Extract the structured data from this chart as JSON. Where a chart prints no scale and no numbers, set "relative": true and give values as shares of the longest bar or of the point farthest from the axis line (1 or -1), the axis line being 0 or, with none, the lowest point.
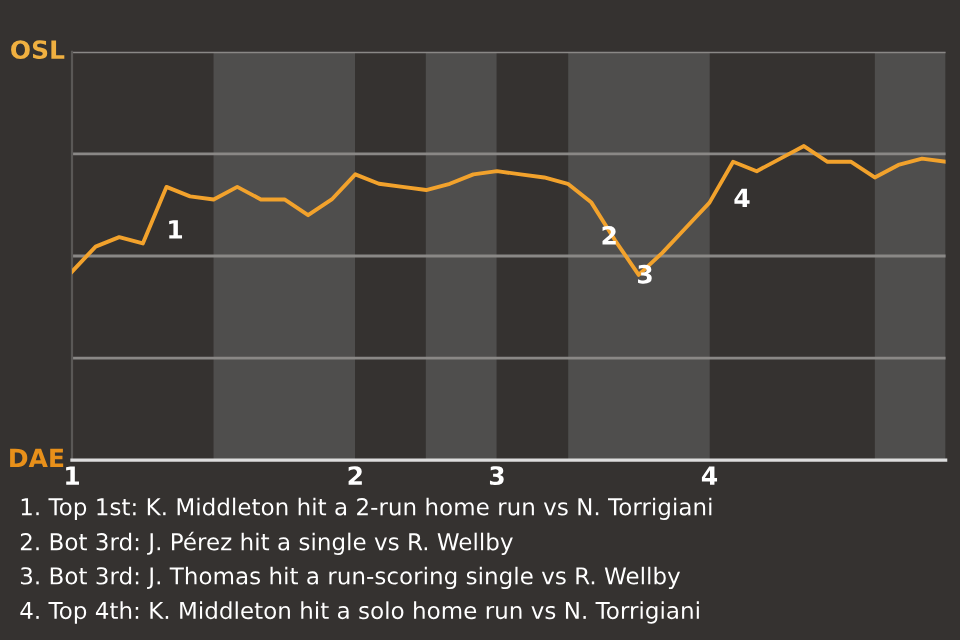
{
  "chart_data": {
    "type": "line",
    "relative": true,
    "categories": [
      "1",
      null,
      null,
      null,
      null,
      null,
      null,
      null,
      null,
      null,
      null,
      null,
      "2",
      null,
      null,
      null,
      null,
      null,
      "3",
      null,
      null,
      null,
      null,
      null,
      null,
      null,
      null,
      "4",
      null,
      null,
      null,
      null,
      null,
      null,
      null,
      null,
      null,
      null
    ],
    "series": [
      {
        "color": "#f2a22c",
        "values": [
          0.6,
          0.68,
          0.71,
          0.69,
          0.87,
          0.84,
          0.83,
          0.87,
          0.83,
          0.83,
          0.78,
          0.83,
          0.91,
          0.88,
          0.87,
          0.86,
          0.88,
          0.91,
          0.92,
          0.91,
          0.9,
          0.88,
          0.82,
          0.7,
          0.59,
          0.66,
          0.74,
          0.82,
          0.95,
          0.92,
          0.96,
          1,
          0.95,
          0.95,
          0.9,
          0.94,
          0.96,
          0.95
        ]
      }
    ],
    "annotations": [
      "OSL",
      "DAE",
      "1",
      "2",
      "3",
      "4",
      "1. Top 1st: K. Middleton hit a 2-run home run vs N. Torrigiani",
      "2. Bot 3rd: J. Pérez hit a single vs R. Wellby",
      "3. Bot 3rd: J. Thomas hit a run-scoring single vs R. Wellby",
      "4. Top 4th: K. Middleton hit a solo home run vs N. Torrigiani"
    ],
    "grid": "y",
    "marker": "none",
    "line_style": "solid",
    "legend": false
  }
}
